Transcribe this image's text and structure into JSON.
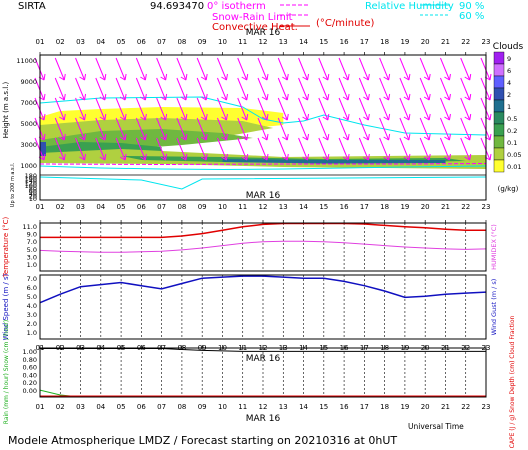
{
  "header": {
    "site": "SIRTA",
    "coords": "94.693470",
    "legend_isotherm": "0° isotherm",
    "legend_snow_rain": "Snow-Rain Limit",
    "legend_convective": "Convective Heat.",
    "legend_convective_unit": "(°C/minute)",
    "legend_rh": "Relative Humidity",
    "legend_rh_90": "90 %",
    "legend_rh_60": "60 %"
  },
  "date_label": "MAR 16",
  "hours": [
    "01",
    "02",
    "03",
    "04",
    "05",
    "06",
    "07",
    "08",
    "09",
    "10",
    "11",
    "12",
    "13",
    "14",
    "15",
    "16",
    "17",
    "18",
    "19",
    "20",
    "21",
    "22",
    "23"
  ],
  "clouds_panel": {
    "ylabel": "Height   (m  a.s.l.)",
    "ylabel_low": "Up to 200 m a.s.l.",
    "upper_ticks": [
      "11000",
      "9000",
      "7000",
      "5000",
      "3000",
      "1000"
    ],
    "lower_ticks": [
      "180",
      "160",
      "140",
      "120",
      "100",
      "80",
      "60",
      "40",
      "20",
      "10"
    ],
    "colorbar_title": "Clouds",
    "colorbar_labels": [
      "9",
      "6",
      "4",
      "2",
      "1",
      "0.5",
      "0.2",
      "0.1",
      "0.05",
      "0.01"
    ],
    "colorbar_colors": [
      "#a020f0",
      "#d070ff",
      "#6060ff",
      "#3050b0",
      "#1f6f8f",
      "#2a8a60",
      "#3aa050",
      "#70b840",
      "#b0d040",
      "#ffff30"
    ],
    "colorbar_unit": "(g/kg)"
  },
  "temp_panel": {
    "ylabel": "Temperature   (°C)",
    "ylabel_right": "HUMIDEX   (°C)",
    "ticks": [
      "11.0",
      "9.0",
      "7.0",
      "5.0",
      "3.0",
      "1.0"
    ]
  },
  "wind_panel": {
    "ylabel": "Wind Speed   (m / s)",
    "ylabel_right": "Wind Gust   (m / s)",
    "ticks": [
      "7.0",
      "6.0",
      "5.0",
      "4.0",
      "3.0",
      "2.0",
      "1.0"
    ]
  },
  "precip_panel": {
    "ylabel": "Rain (mm / hour)   Snow (cm / hour)",
    "ylabel_right": "CAPE (J / g)   Snow Depth (cm)   Cloud Fraction",
    "ticks": [
      "1.00",
      "0.80",
      "0.60",
      "0.40",
      "0.20",
      "0.00"
    ]
  },
  "xaxis_title": "Universal Time",
  "footer": "Modele Atmospherique LMDZ / Forecast starting on 20210316 at 0hUT",
  "colors": {
    "magenta": "#ff00ff",
    "cyan": "#00e5ee",
    "temp_red": "#e00000",
    "humidex": "#e040e0",
    "wind": "#1010c0",
    "black": "#000000"
  },
  "chart_data": [
    {
      "type": "heatmap",
      "title": "Clouds",
      "x": [
        1,
        2,
        3,
        4,
        5,
        6,
        7,
        8,
        9,
        10,
        11,
        12,
        13,
        14,
        15,
        16,
        17,
        18,
        19,
        20,
        21,
        22,
        23
      ],
      "wind_direction_note": "magenta arrows pointing down-right (north-westerly flow) at all levels",
      "ylim": [
        0,
        12000
      ],
      "colorbar_unit": "(g/kg)"
    },
    {
      "type": "line",
      "x": [
        1,
        2,
        3,
        4,
        5,
        6,
        7,
        8,
        9,
        10,
        11,
        12,
        13,
        14,
        15,
        16,
        17,
        18,
        19,
        20,
        21,
        22,
        23
      ],
      "series": [
        {
          "name": "Temperature",
          "values": [
            8.0,
            8.0,
            8.0,
            8.0,
            8.0,
            8.0,
            8.0,
            8.3,
            8.8,
            9.5,
            10.2,
            10.7,
            10.9,
            10.9,
            10.9,
            10.9,
            10.8,
            10.5,
            10.2,
            10.0,
            9.7,
            9.5,
            9.5
          ]
        },
        {
          "name": "HUMIDEX",
          "values": [
            5.3,
            5.1,
            5.0,
            4.9,
            4.9,
            5.0,
            5.1,
            5.4,
            5.8,
            6.3,
            6.8,
            7.1,
            7.2,
            7.2,
            7.1,
            6.9,
            6.6,
            6.3,
            6.0,
            5.8,
            5.6,
            5.5,
            5.6
          ]
        }
      ],
      "ylim": [
        1,
        11
      ]
    },
    {
      "type": "line",
      "x": [
        1,
        2,
        3,
        4,
        5,
        6,
        7,
        8,
        9,
        10,
        11,
        12,
        13,
        14,
        15,
        16,
        17,
        18,
        19,
        20,
        21,
        22,
        23
      ],
      "series": [
        {
          "name": "Wind Speed",
          "values": [
            4.4,
            5.2,
            5.9,
            6.1,
            6.3,
            6.0,
            5.7,
            6.2,
            6.7,
            6.8,
            6.9,
            6.9,
            6.8,
            6.7,
            6.7,
            6.4,
            6.0,
            5.5,
            4.9,
            5.0,
            5.2,
            5.3,
            5.4
          ]
        }
      ],
      "ylim": [
        1,
        7
      ]
    },
    {
      "type": "line",
      "x": [
        1,
        2,
        3,
        4,
        5,
        6,
        7,
        8,
        9,
        10,
        11,
        12,
        13,
        14,
        15,
        16,
        17,
        18,
        19,
        20,
        21,
        22,
        23
      ],
      "series": [
        {
          "name": "Cloud Fraction",
          "values": [
            0.99,
            0.99,
            0.99,
            0.99,
            0.99,
            0.99,
            0.99,
            0.97,
            0.95,
            0.94,
            0.93,
            0.93,
            0.93,
            0.93,
            0.93,
            0.93,
            0.93,
            0.93,
            0.93,
            0.93,
            0.93,
            0.93,
            0.93
          ]
        },
        {
          "name": "Rain",
          "values": [
            0.14,
            0.04,
            0.0,
            0.0,
            0.0,
            0.0,
            0.0,
            0.0,
            0.0,
            0.0,
            0.0,
            0.0,
            0.0,
            0.0,
            0.0,
            0.0,
            0.0,
            0.0,
            0.0,
            0.0,
            0.0,
            0.0,
            0.0
          ]
        },
        {
          "name": "CAPE",
          "values": [
            0.02,
            0.02,
            0.02,
            0.02,
            0.02,
            0.02,
            0.02,
            0.02,
            0.02,
            0.02,
            0.02,
            0.02,
            0.02,
            0.02,
            0.02,
            0.02,
            0.02,
            0.02,
            0.02,
            0.02,
            0.02,
            0.02,
            0.02
          ]
        }
      ],
      "ylim": [
        0,
        1
      ]
    }
  ]
}
